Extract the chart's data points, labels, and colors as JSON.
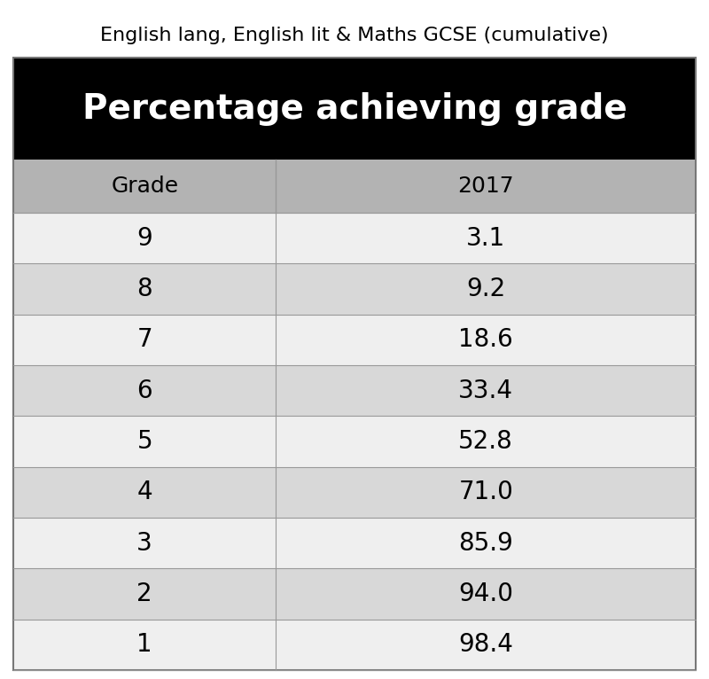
{
  "title": "English lang, English lit & Maths GCSE (cumulative)",
  "header_bg": "#000000",
  "header_text": "Percentage achieving grade",
  "header_text_color": "#ffffff",
  "col_header_bg": "#b3b3b3",
  "col_header_text_color": "#000000",
  "col_headers": [
    "Grade",
    "2017"
  ],
  "grades": [
    "9",
    "8",
    "7",
    "6",
    "5",
    "4",
    "3",
    "2",
    "1"
  ],
  "values": [
    "3.1",
    "9.2",
    "18.6",
    "33.4",
    "52.8",
    "71.0",
    "85.9",
    "94.0",
    "98.4"
  ],
  "row_colors_odd": "#efefef",
  "row_colors_even": "#d8d8d8",
  "divider_color": "#999999",
  "title_fontsize": 16,
  "header_fontsize": 28,
  "col_header_fontsize": 18,
  "cell_fontsize": 20,
  "background_color": "#ffffff"
}
